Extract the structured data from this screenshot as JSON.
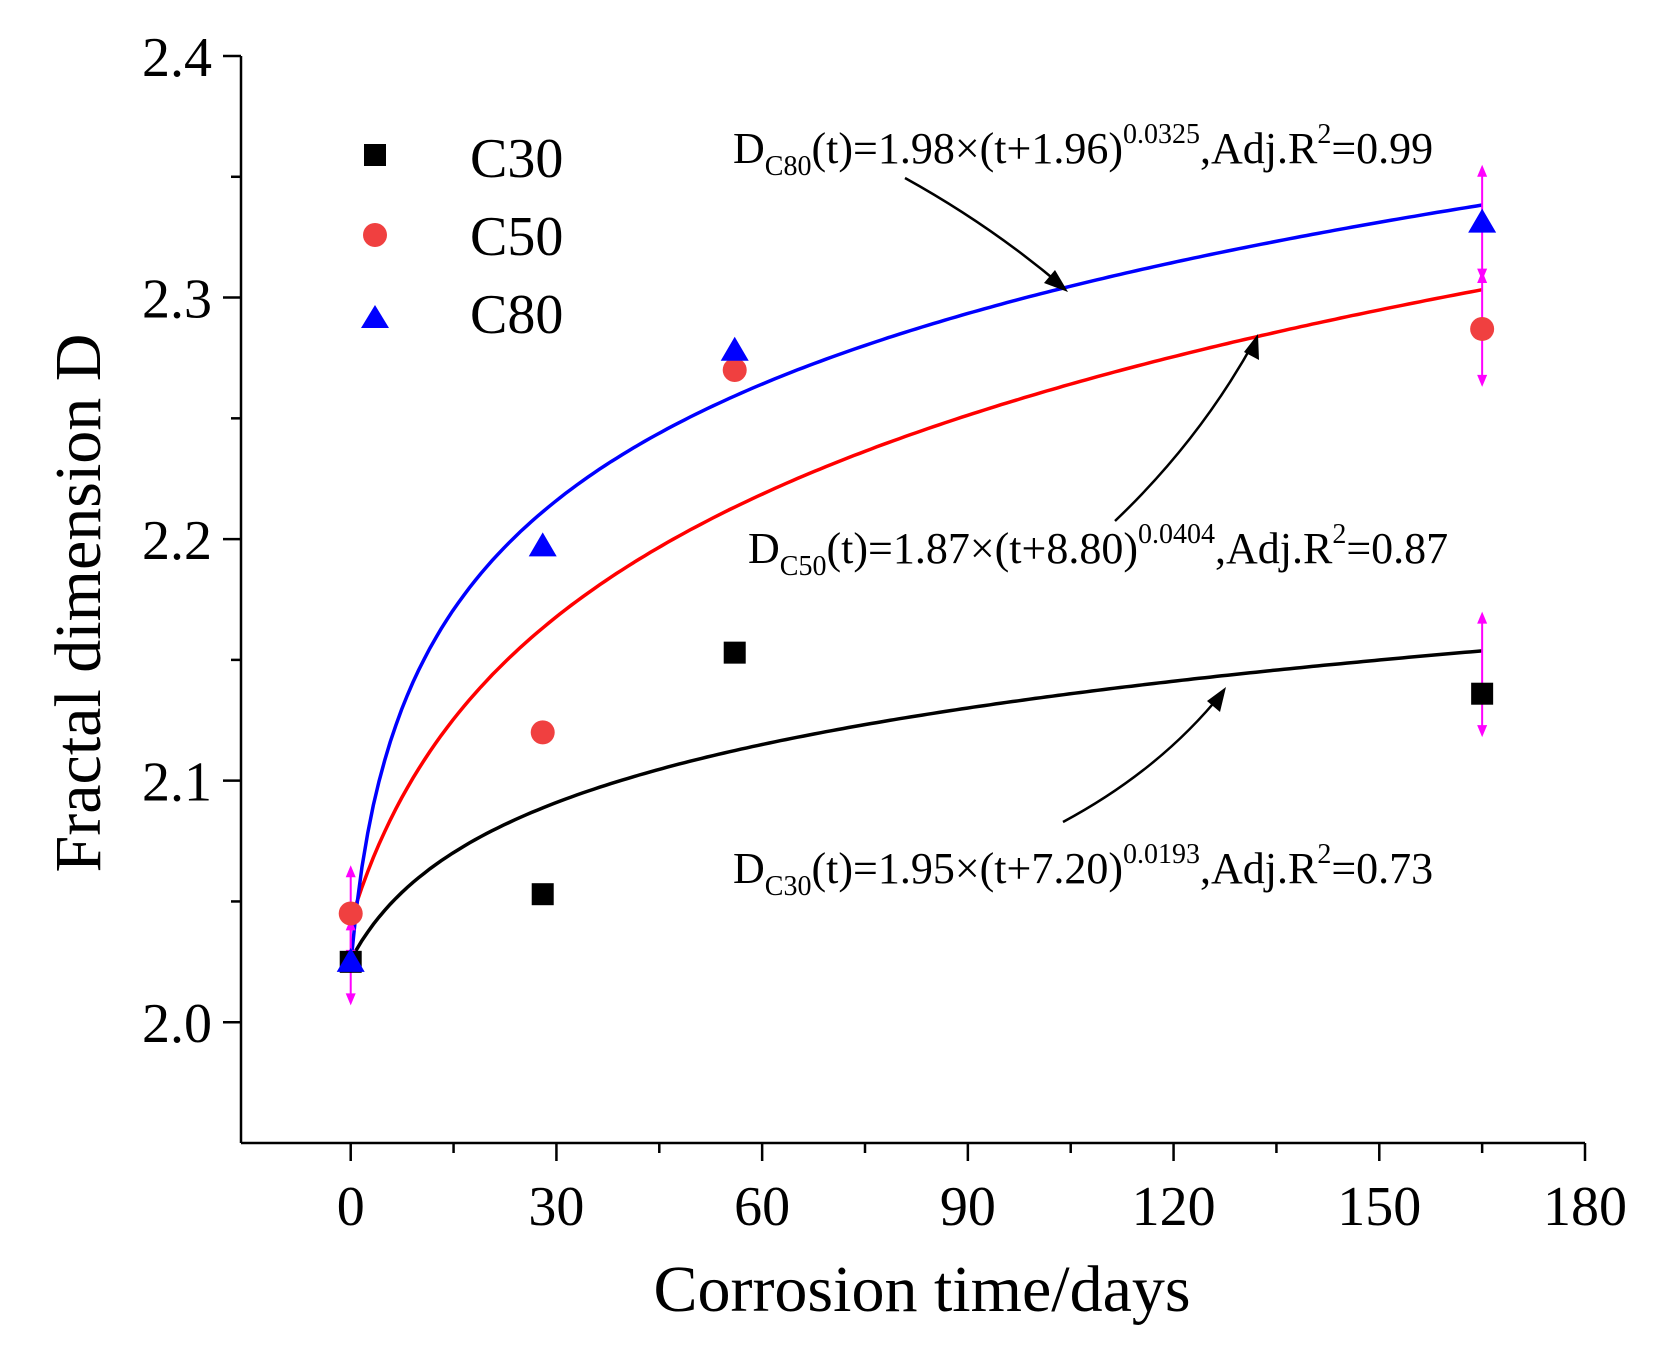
{
  "chart_data": {
    "type": "scatter",
    "xlabel": "Corrosion time/days",
    "ylabel": "Fractal dimension D",
    "xlim": [
      -16,
      180
    ],
    "ylim": [
      1.95,
      2.4
    ],
    "xticks": [
      "0",
      "30",
      "60",
      "90",
      "120",
      "150",
      "180"
    ],
    "yticks": [
      "2.0",
      "2.1",
      "2.2",
      "2.3",
      "2.4"
    ],
    "series": [
      {
        "name": "C30",
        "marker": "square",
        "color": "#000000",
        "x": [
          0,
          28,
          56,
          165
        ],
        "y": [
          2.025,
          2.053,
          2.153,
          2.136
        ],
        "fit": {
          "a": 1.95,
          "b": 7.2,
          "c": 0.0193,
          "color": "#000000"
        },
        "equation": {
          "main": "D",
          "sub": "C30",
          "body": "(t)=1.95×(t+7.20)",
          "exp": "0.0193",
          "tail": ",Adj.R",
          "r2sup": "2",
          "r2": "=0.73"
        },
        "error_bars": [
          {
            "x": 165,
            "low": 2.118,
            "high": 2.17
          }
        ]
      },
      {
        "name": "C50",
        "marker": "circle",
        "color": "#f04040",
        "x": [
          0,
          28,
          56,
          165
        ],
        "y": [
          2.045,
          2.12,
          2.27,
          2.287
        ],
        "fit": {
          "a": 1.87,
          "b": 8.8,
          "c": 0.0404,
          "color": "#ff0000"
        },
        "equation": {
          "main": "D",
          "sub": "C50",
          "body": "(t)=1.87×(t+8.80)",
          "exp": "0.0404",
          "tail": ",Adj.R",
          "r2sup": "2",
          "r2": "=0.87"
        },
        "error_bars": [
          {
            "x": 0,
            "low": 2.025,
            "high": 2.065
          },
          {
            "x": 165,
            "low": 2.263,
            "high": 2.311
          }
        ]
      },
      {
        "name": "C80",
        "marker": "triangle",
        "color": "#0000ff",
        "x": [
          0,
          28,
          56,
          165
        ],
        "y": [
          2.025,
          2.197,
          2.278,
          2.331
        ],
        "fit": {
          "a": 1.98,
          "b": 1.96,
          "c": 0.0325,
          "color": "#0000ff"
        },
        "equation": {
          "main": "D",
          "sub": "C80",
          "body": "(t)=1.98×(t+1.96)",
          "exp": "0.0325",
          "tail": ",Adj.R",
          "r2sup": "2",
          "r2": "=0.99"
        },
        "error_bars": [
          {
            "x": 0,
            "low": 2.007,
            "high": 2.043
          },
          {
            "x": 165,
            "low": 2.307,
            "high": 2.355
          }
        ]
      }
    ],
    "error_bar_color": "#ff00ff",
    "legend": {
      "placement": "top-left",
      "entries": [
        "C30",
        "C50",
        "C80"
      ]
    }
  }
}
